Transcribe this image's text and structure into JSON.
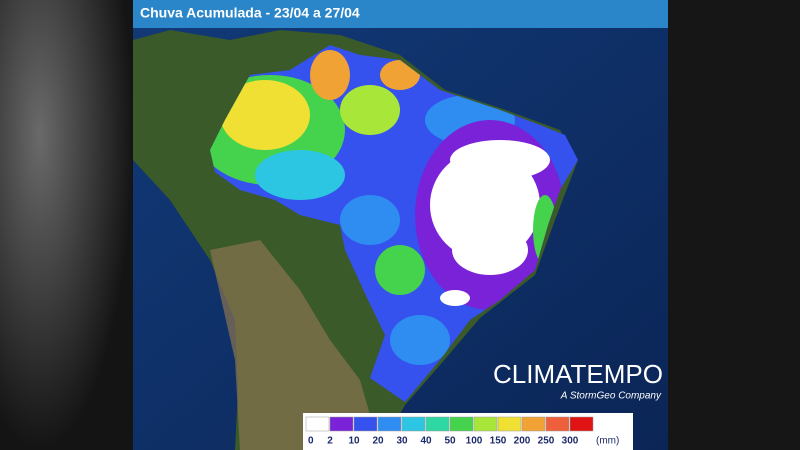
{
  "header": {
    "title": "Chuva Acumulada - 23/04 a 27/04"
  },
  "brand": {
    "name": "CLIMATEMPO",
    "tagline": "A StormGeo Company"
  },
  "legend": {
    "unit": "(mm)",
    "items": [
      {
        "value": 0,
        "color": "#ffffff"
      },
      {
        "value": 2,
        "color": "#7a22d8"
      },
      {
        "value": 10,
        "color": "#3552ee"
      },
      {
        "value": 20,
        "color": "#2f8cf0"
      },
      {
        "value": 30,
        "color": "#2cc6e2"
      },
      {
        "value": 40,
        "color": "#2fd7a2"
      },
      {
        "value": 50,
        "color": "#45d24c"
      },
      {
        "value": 100,
        "color": "#a9e63a"
      },
      {
        "value": 150,
        "color": "#efe033"
      },
      {
        "value": 200,
        "color": "#f0a334"
      },
      {
        "value": 250,
        "color": "#ee5f3c"
      },
      {
        "value": 300,
        "color": "#e01414"
      }
    ]
  }
}
